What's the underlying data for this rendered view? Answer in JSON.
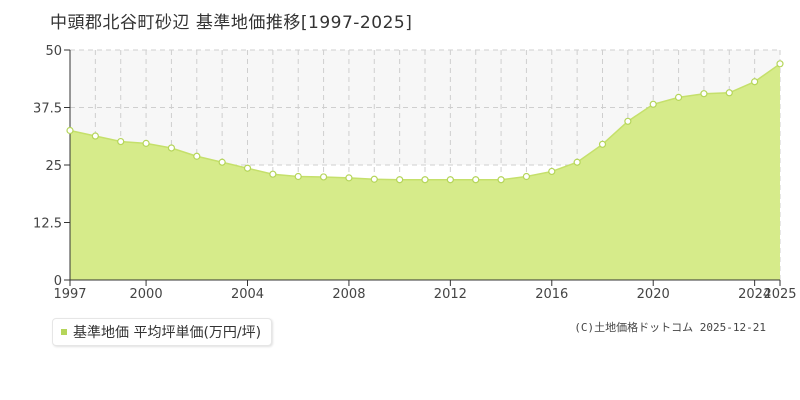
{
  "title": "中頭郡北谷町砂辺 基準地価推移[1997-2025]",
  "legend_label": "基準地価 平均坪単価(万円/坪)",
  "copyright": "(C)土地価格ドットコム 2025-12-21",
  "colors": {
    "area_fill": "#d6eb8a",
    "line": "#c5e06b",
    "marker_fill": "#ffffff",
    "marker_stroke": "#b5d55a",
    "grid": "#cfcfcf",
    "upper_band": "#f7f7f7"
  },
  "chart_data": {
    "type": "area",
    "title": "中頭郡北谷町砂辺 基準地価推移[1997-2025]",
    "xlabel": "",
    "ylabel": "",
    "xlim": [
      1997,
      2025
    ],
    "ylim": [
      0,
      50
    ],
    "yticks": [
      0,
      12.5,
      25,
      37.5,
      50
    ],
    "ytick_labels": [
      "0",
      "12.5",
      "25",
      "37.5",
      "50"
    ],
    "xticks": [
      1997,
      2000,
      2004,
      2008,
      2012,
      2016,
      2020,
      2024,
      2025
    ],
    "xtick_labels": [
      "1997",
      "2000",
      "2004",
      "2008",
      "2012",
      "2016",
      "2020",
      "2024",
      "2025"
    ],
    "grid": true,
    "legend_position": "bottom-left",
    "series": [
      {
        "name": "基準地価 平均坪単価(万円/坪)",
        "x": [
          1997,
          1998,
          1999,
          2000,
          2001,
          2002,
          2003,
          2004,
          2005,
          2006,
          2007,
          2008,
          2009,
          2010,
          2011,
          2012,
          2013,
          2014,
          2015,
          2016,
          2017,
          2018,
          2019,
          2020,
          2021,
          2022,
          2023,
          2024,
          2025
        ],
        "values": [
          32.5,
          31.3,
          30.1,
          29.7,
          28.7,
          26.9,
          25.6,
          24.3,
          23.0,
          22.5,
          22.4,
          22.2,
          21.9,
          21.8,
          21.8,
          21.8,
          21.8,
          21.8,
          22.5,
          23.6,
          25.6,
          29.5,
          34.5,
          38.2,
          39.7,
          40.5,
          40.7,
          43.1,
          47.0
        ]
      }
    ]
  }
}
